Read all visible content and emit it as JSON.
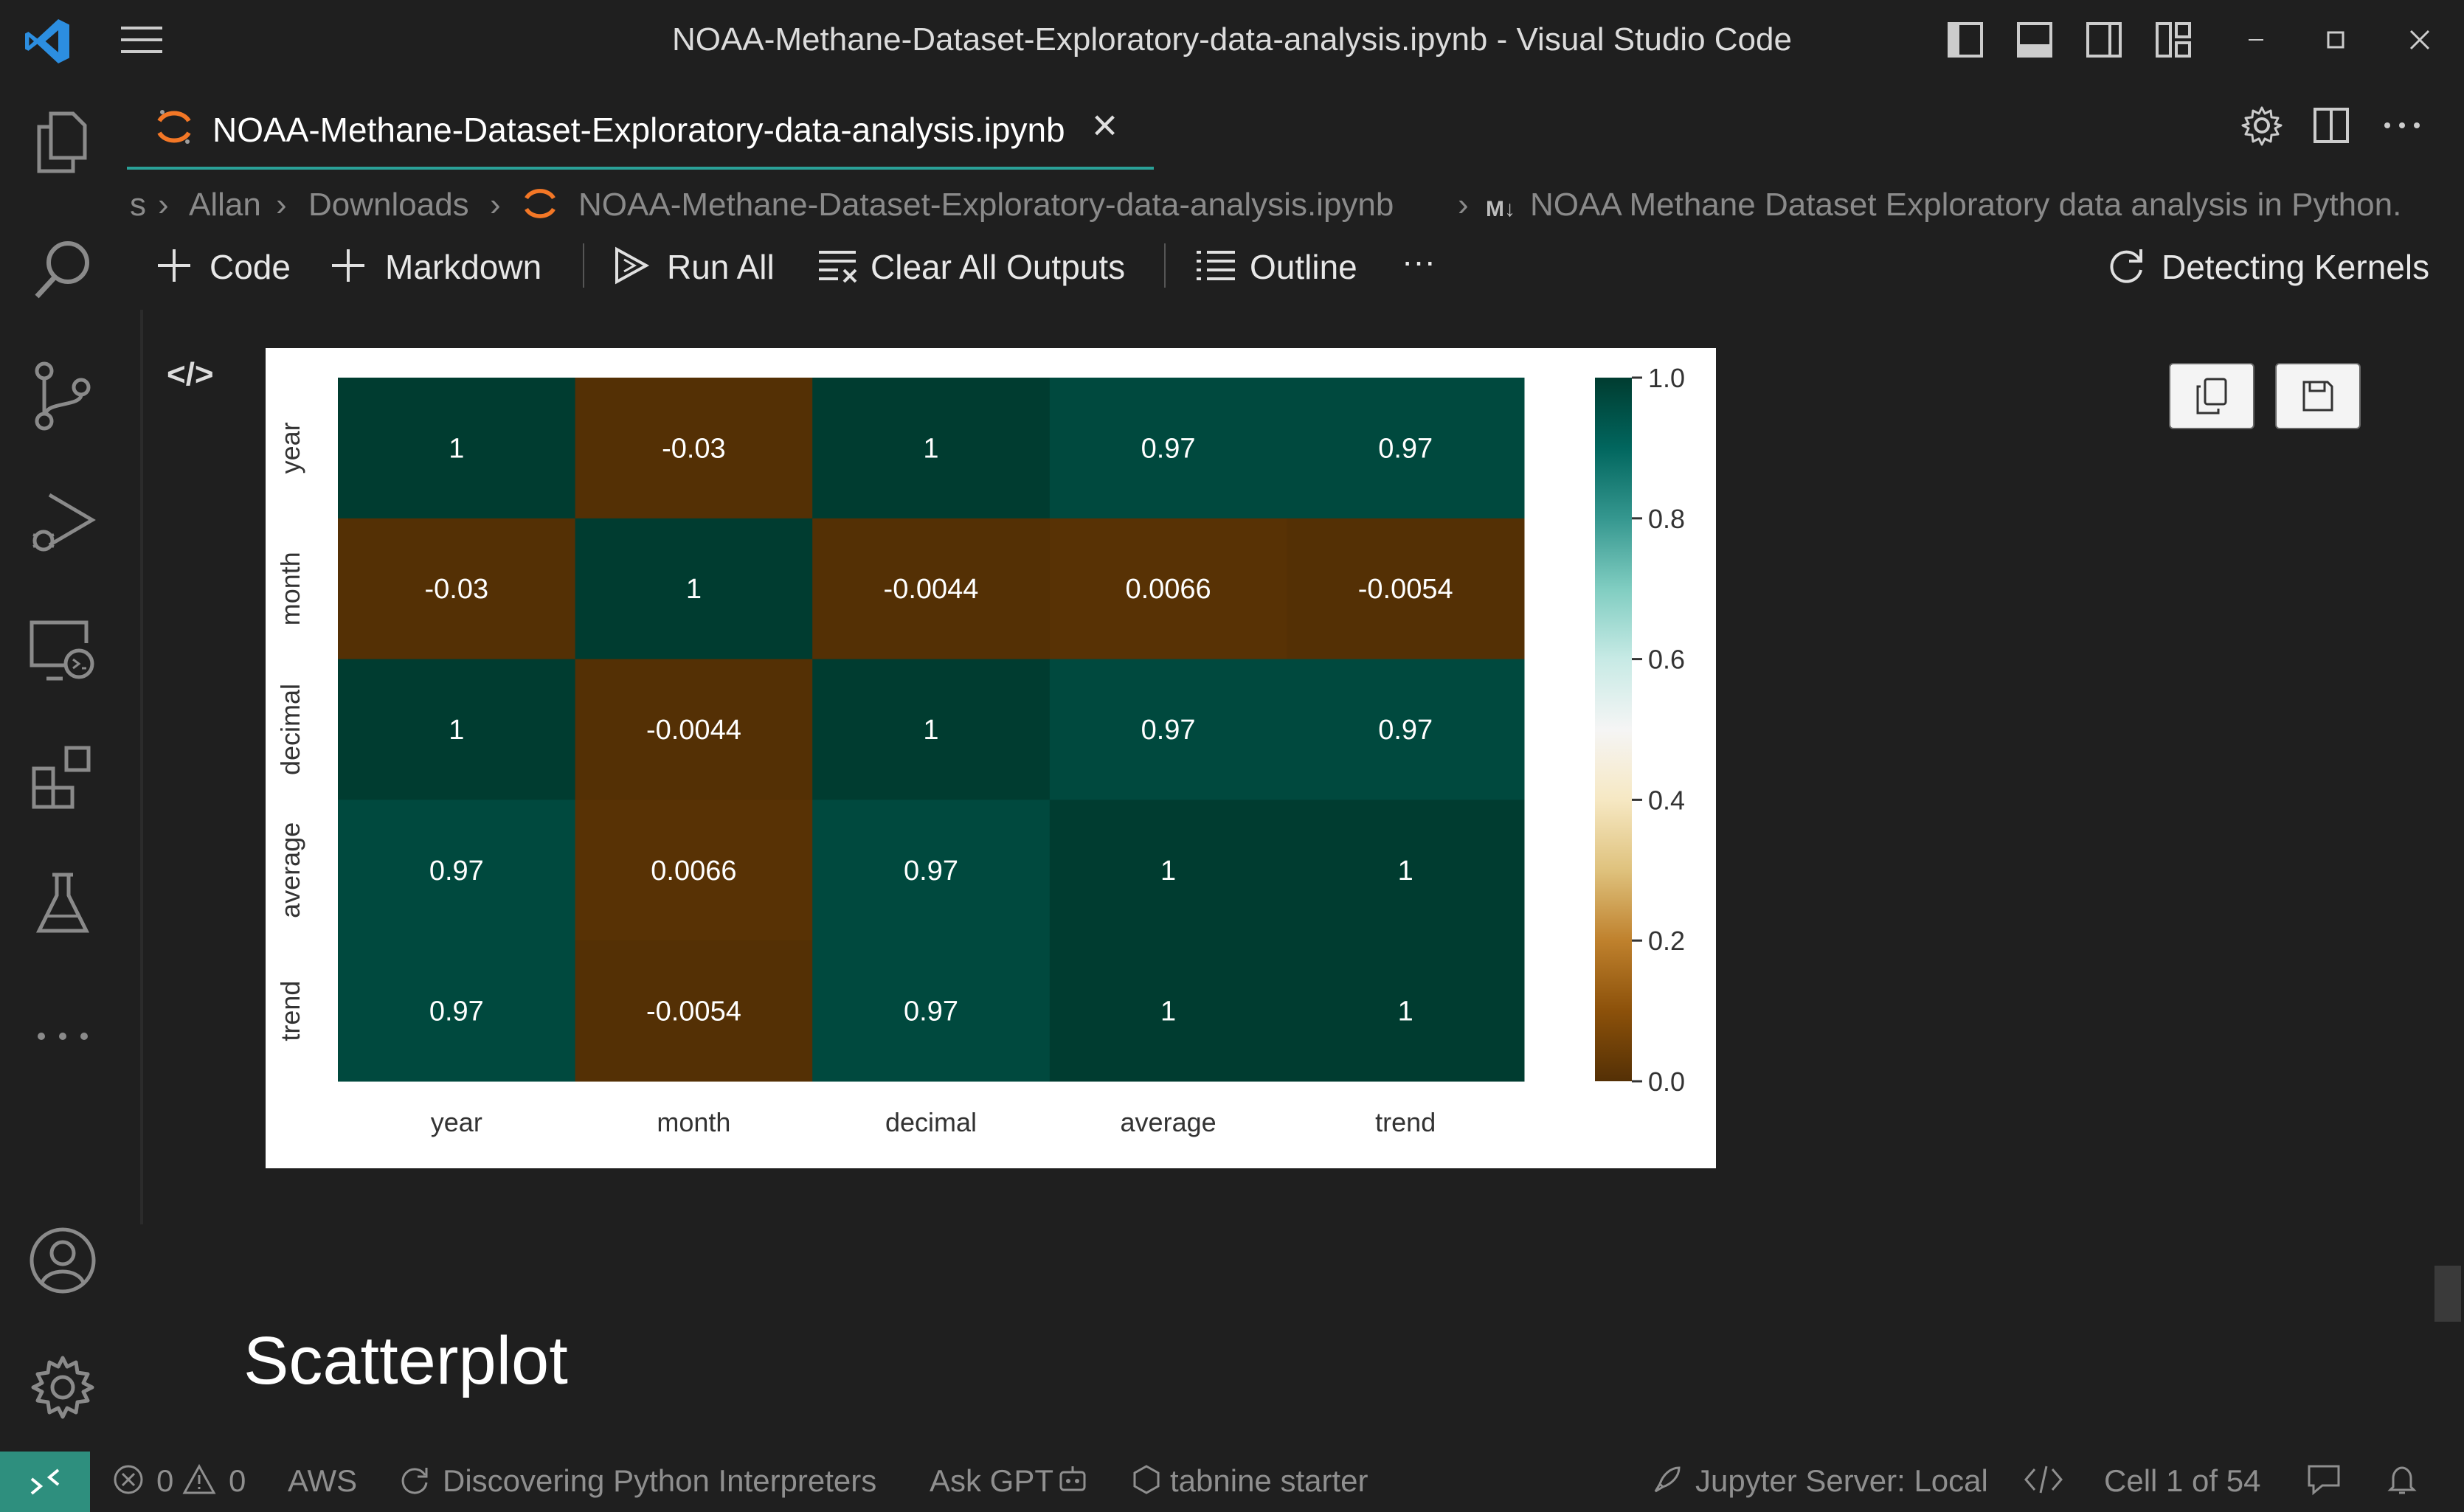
{
  "window": {
    "title": "NOAA-Methane-Dataset-Exploratory-data-analysis.ipynb - Visual Studio Code"
  },
  "tab": {
    "label": "NOAA-Methane-Dataset-Exploratory-data-analysis.ipynb",
    "close": "×"
  },
  "breadcrumb": {
    "items": [
      "s",
      "Allan",
      "Downloads",
      "NOAA-Methane-Dataset-Exploratory-data-analysis.ipynb",
      "NOAA Methane Dataset Exploratory data analysis in Python."
    ],
    "md_badge": "M↓"
  },
  "toolbar": {
    "code": "Code",
    "markdown": "Markdown",
    "run_all": "Run All",
    "clear_all": "Clear All Outputs",
    "outline": "Outline",
    "more": "···",
    "kernel": "Detecting Kernels"
  },
  "cell_gutter": {
    "code_toggle": "</>"
  },
  "notebook": {
    "heading": "Scatterplot"
  },
  "statusbar": {
    "errors": "0",
    "warnings": "0",
    "aws": "AWS",
    "interpreters": "Discovering Python Interpreters",
    "ask_gpt": "Ask GPT",
    "tabnine": "tabnine starter",
    "jupyter": "Jupyter Server: Local",
    "cell": "Cell 1 of 54"
  },
  "colors": {
    "accent": "#2aa198",
    "remote": "#2e8f7e",
    "heat_low": "#543005",
    "heat_mid": "#f5f5f5",
    "heat_high": "#003c30"
  },
  "icons": [
    "vscode-logo-icon",
    "menu-icon",
    "layout-sidebar-icon",
    "layout-panel-icon",
    "layout-secondary-icon",
    "layout-custom-icon",
    "minimize-icon",
    "maximize-icon",
    "close-icon",
    "explorer-icon",
    "search-icon",
    "source-control-icon",
    "run-debug-icon",
    "remote-explorer-icon",
    "extensions-icon",
    "testing-icon",
    "more-icon",
    "account-icon",
    "manage-gear-icon",
    "jupyter-icon",
    "settings-gear-icon",
    "split-editor-icon",
    "ellipsis-icon",
    "plus-icon",
    "run-all-icon",
    "clear-outputs-icon",
    "outline-icon",
    "kernel-refresh-icon",
    "copy-icon",
    "save-icon",
    "remote-indicator-icon",
    "error-icon",
    "warning-icon",
    "sync-icon",
    "robot-icon",
    "tabnine-icon",
    "rocket-icon",
    "code-icon",
    "feedback-icon",
    "bell-icon"
  ],
  "chart_data": {
    "type": "heatmap",
    "title": "",
    "x_labels": [
      "year",
      "month",
      "decimal",
      "average",
      "trend"
    ],
    "y_labels": [
      "year",
      "month",
      "decimal",
      "average",
      "trend"
    ],
    "values": [
      [
        1,
        -0.03,
        1,
        0.97,
        0.97
      ],
      [
        -0.03,
        1,
        -0.0044,
        0.0066,
        -0.0054
      ],
      [
        1,
        -0.0044,
        1,
        0.97,
        0.97
      ],
      [
        0.97,
        0.0066,
        0.97,
        1,
        1
      ],
      [
        0.97,
        -0.0054,
        0.97,
        1,
        1
      ]
    ],
    "annotations": [
      [
        "1",
        "-0.03",
        "1",
        "0.97",
        "0.97"
      ],
      [
        "-0.03",
        "1",
        "-0.0044",
        "0.0066",
        "-0.0054"
      ],
      [
        "1",
        "-0.0044",
        "1",
        "0.97",
        "0.97"
      ],
      [
        "0.97",
        "0.0066",
        "0.97",
        "1",
        "1"
      ],
      [
        "0.97",
        "-0.0054",
        "0.97",
        "1",
        "1"
      ]
    ],
    "colormap": "BrBG",
    "colorbar": {
      "range": [
        0.0,
        1.0
      ],
      "ticks": [
        "0.0",
        "0.2",
        "0.4",
        "0.6",
        "0.8",
        "1.0"
      ]
    }
  }
}
